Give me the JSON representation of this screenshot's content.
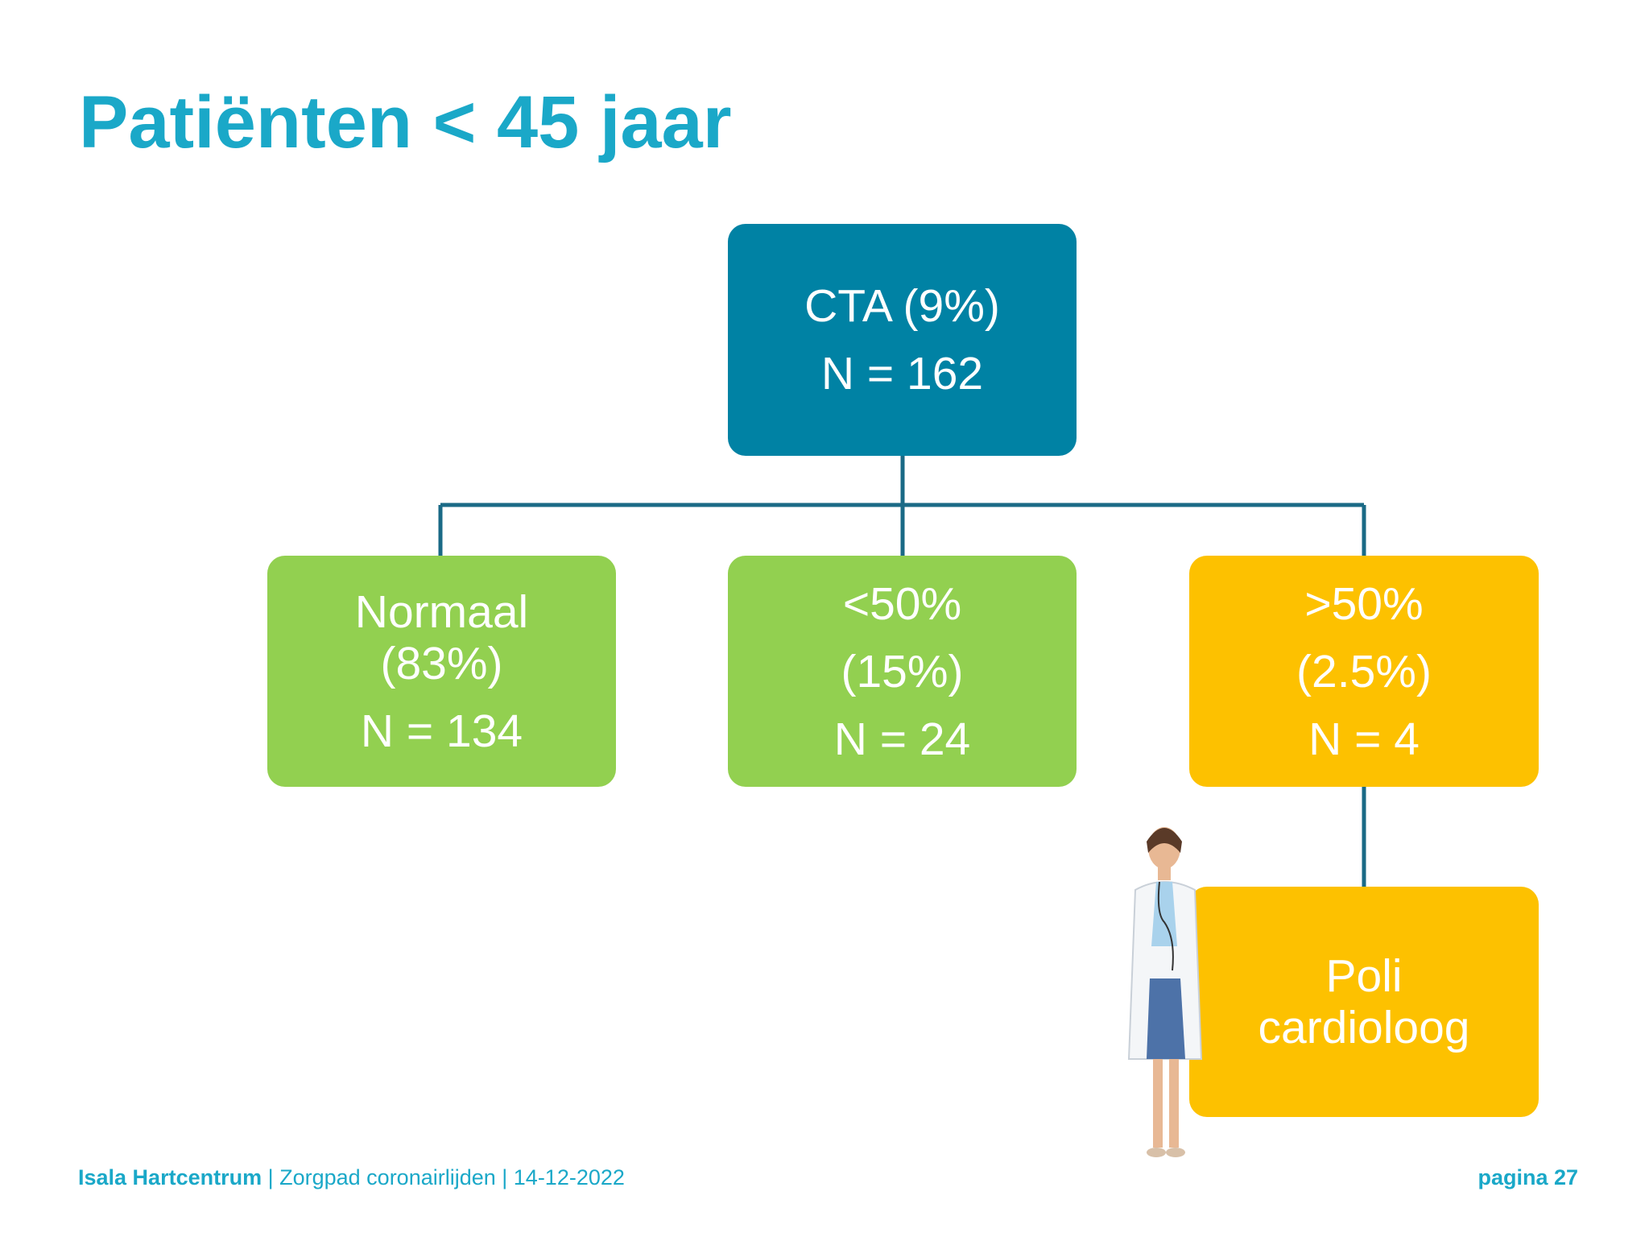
{
  "header": {
    "title": "Patiënten < 45 jaar"
  },
  "nodes": [
    {
      "lines": [
        "CTA (9%)",
        "N = 162"
      ]
    },
    {
      "lines": [
        "Normaal",
        "(83%)",
        "N = 134"
      ]
    },
    {
      "lines": [
        "<50%",
        "(15%)",
        "N = 24"
      ]
    },
    {
      "lines": [
        ">50%",
        "(2.5%)",
        "N = 4"
      ]
    },
    {
      "lines": [
        "Poli",
        "cardioloog"
      ]
    }
  ],
  "footer": {
    "organization": "Isala Hartcentrum",
    "subtitle": " | Zorgpad coronairlijden | 14-12-2022",
    "page": "pagina 27"
  }
}
